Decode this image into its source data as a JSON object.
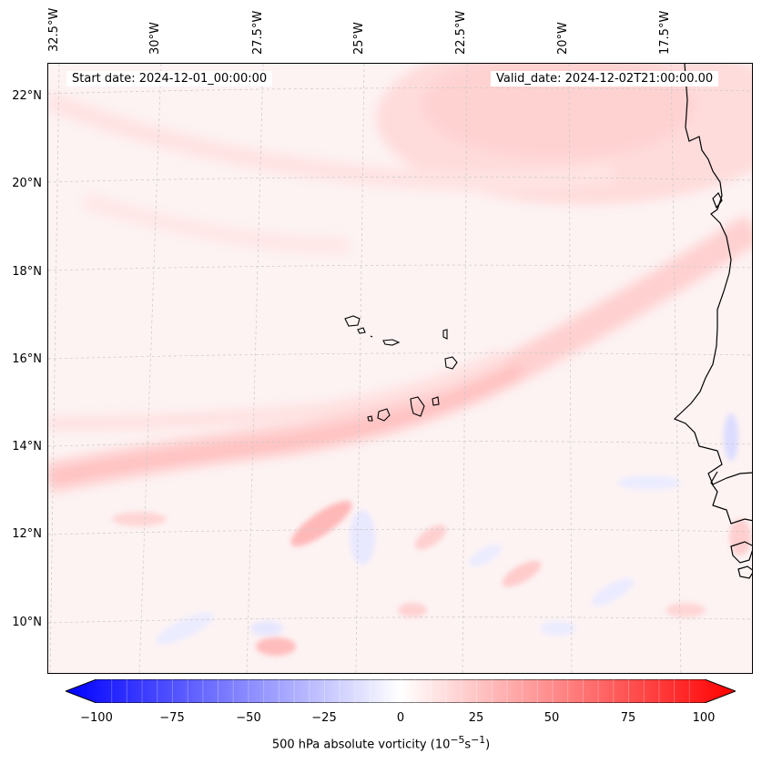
{
  "map": {
    "start_date": "Start date: 2024-12-01_00:00:00",
    "valid_date": "Valid_date: 2024-12-02T21:00:00.00",
    "lon_labels": [
      "32.5°W",
      "30°W",
      "27.5°W",
      "25°W",
      "22.5°W",
      "20°W",
      "17.5°W"
    ],
    "lat_labels": [
      "22°N",
      "20°N",
      "18°N",
      "16°N",
      "14°N",
      "12°N",
      "10°N"
    ],
    "field": "500 hPa absolute vorticity"
  },
  "colorbar": {
    "ticks": [
      "−100",
      "−75",
      "−50",
      "−25",
      "0",
      "25",
      "50",
      "75",
      "100"
    ],
    "label": "500 hPa absolute vorticity (10",
    "label_exp1": "−5",
    "label_mid": "s",
    "label_exp2": "−1",
    "label_end": ")",
    "min_color": "#0000ff",
    "mid_color": "#ffffff",
    "max_color": "#ff0000"
  }
}
